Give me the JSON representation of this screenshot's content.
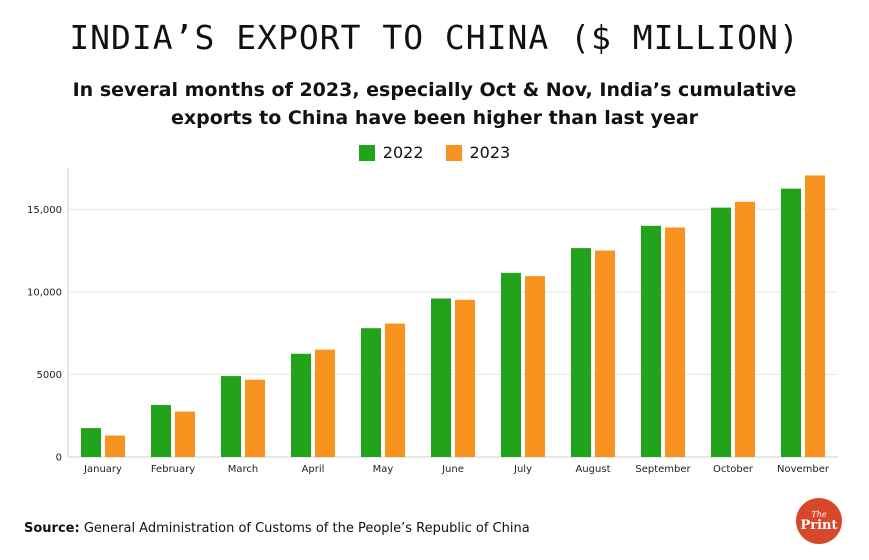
{
  "title": "INDIA’S EXPORT TO CHINA ($ MILLION)",
  "subtitle": "In several months of 2023, especially Oct & Nov, India’s cumulative exports to China have been higher than last year",
  "source_label": "Source:",
  "source_text": " General Administration of Customs of the People’s Republic of China",
  "logo": {
    "line1": "The",
    "line2": "Print"
  },
  "colors": {
    "s2022": "#22a31b",
    "s2023": "#f7931e",
    "grid": "#e6e6e6",
    "logo": "#d9472b"
  },
  "chart_data": {
    "type": "bar",
    "title": "INDIA’S EXPORT TO CHINA ($ MILLION)",
    "xlabel": "",
    "ylabel": "",
    "ylim": [
      0,
      17500
    ],
    "yticks": [
      0,
      5000,
      10000,
      15000
    ],
    "ytick_labels": [
      "0",
      "5000",
      "10,000",
      "15,000"
    ],
    "grid": true,
    "legend_position": "top-center",
    "categories": [
      "January",
      "February",
      "March",
      "April",
      "May",
      "June",
      "July",
      "August",
      "September",
      "October",
      "November"
    ],
    "series": [
      {
        "name": "2022",
        "color": "#22a31b",
        "values": [
          1750,
          3150,
          4900,
          6250,
          7800,
          9600,
          11150,
          12650,
          14000,
          15100,
          16250
        ]
      },
      {
        "name": "2023",
        "color": "#f7931e",
        "values": [
          1300,
          2750,
          4680,
          6500,
          8080,
          9520,
          10950,
          12500,
          13900,
          15450,
          17050
        ]
      }
    ]
  }
}
